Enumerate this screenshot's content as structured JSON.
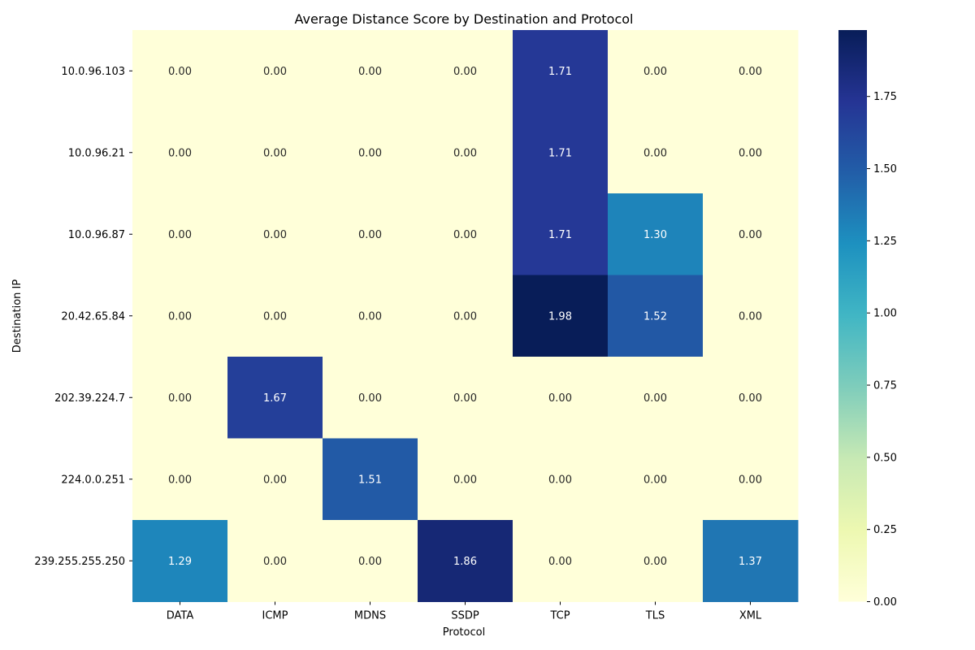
{
  "chart_data": {
    "type": "heatmap",
    "title": "Average Distance Score by Destination and Protocol",
    "xlabel": "Protocol",
    "ylabel": "Destination IP",
    "x_categories": [
      "DATA",
      "ICMP",
      "MDNS",
      "SSDP",
      "TCP",
      "TLS",
      "XML"
    ],
    "y_categories": [
      "10.0.96.103",
      "10.0.96.21",
      "10.0.96.87",
      "20.42.65.84",
      "202.39.224.7",
      "224.0.0.251",
      "239.255.255.250"
    ],
    "values": [
      [
        0.0,
        0.0,
        0.0,
        0.0,
        1.71,
        0.0,
        0.0
      ],
      [
        0.0,
        0.0,
        0.0,
        0.0,
        1.71,
        0.0,
        0.0
      ],
      [
        0.0,
        0.0,
        0.0,
        0.0,
        1.71,
        1.3,
        0.0
      ],
      [
        0.0,
        0.0,
        0.0,
        0.0,
        1.98,
        1.52,
        0.0
      ],
      [
        0.0,
        1.67,
        0.0,
        0.0,
        0.0,
        0.0,
        0.0
      ],
      [
        0.0,
        0.0,
        1.51,
        0.0,
        0.0,
        0.0,
        0.0
      ],
      [
        1.29,
        0.0,
        0.0,
        1.86,
        0.0,
        0.0,
        1.37
      ]
    ],
    "value_format_decimals": 2,
    "colormap": "YlGnBu",
    "colormap_stops": [
      "#ffffd9",
      "#edf8b1",
      "#c7e9b4",
      "#7fcdbb",
      "#41b6c4",
      "#1d91c0",
      "#225ea8",
      "#253494",
      "#081d58"
    ],
    "vmin": 0.0,
    "vmax": 1.98,
    "colorbar_ticks": [
      "0.00",
      "0.25",
      "0.50",
      "0.75",
      "1.00",
      "1.25",
      "1.50",
      "1.75"
    ],
    "grid": false,
    "legend": "colorbar-right"
  }
}
